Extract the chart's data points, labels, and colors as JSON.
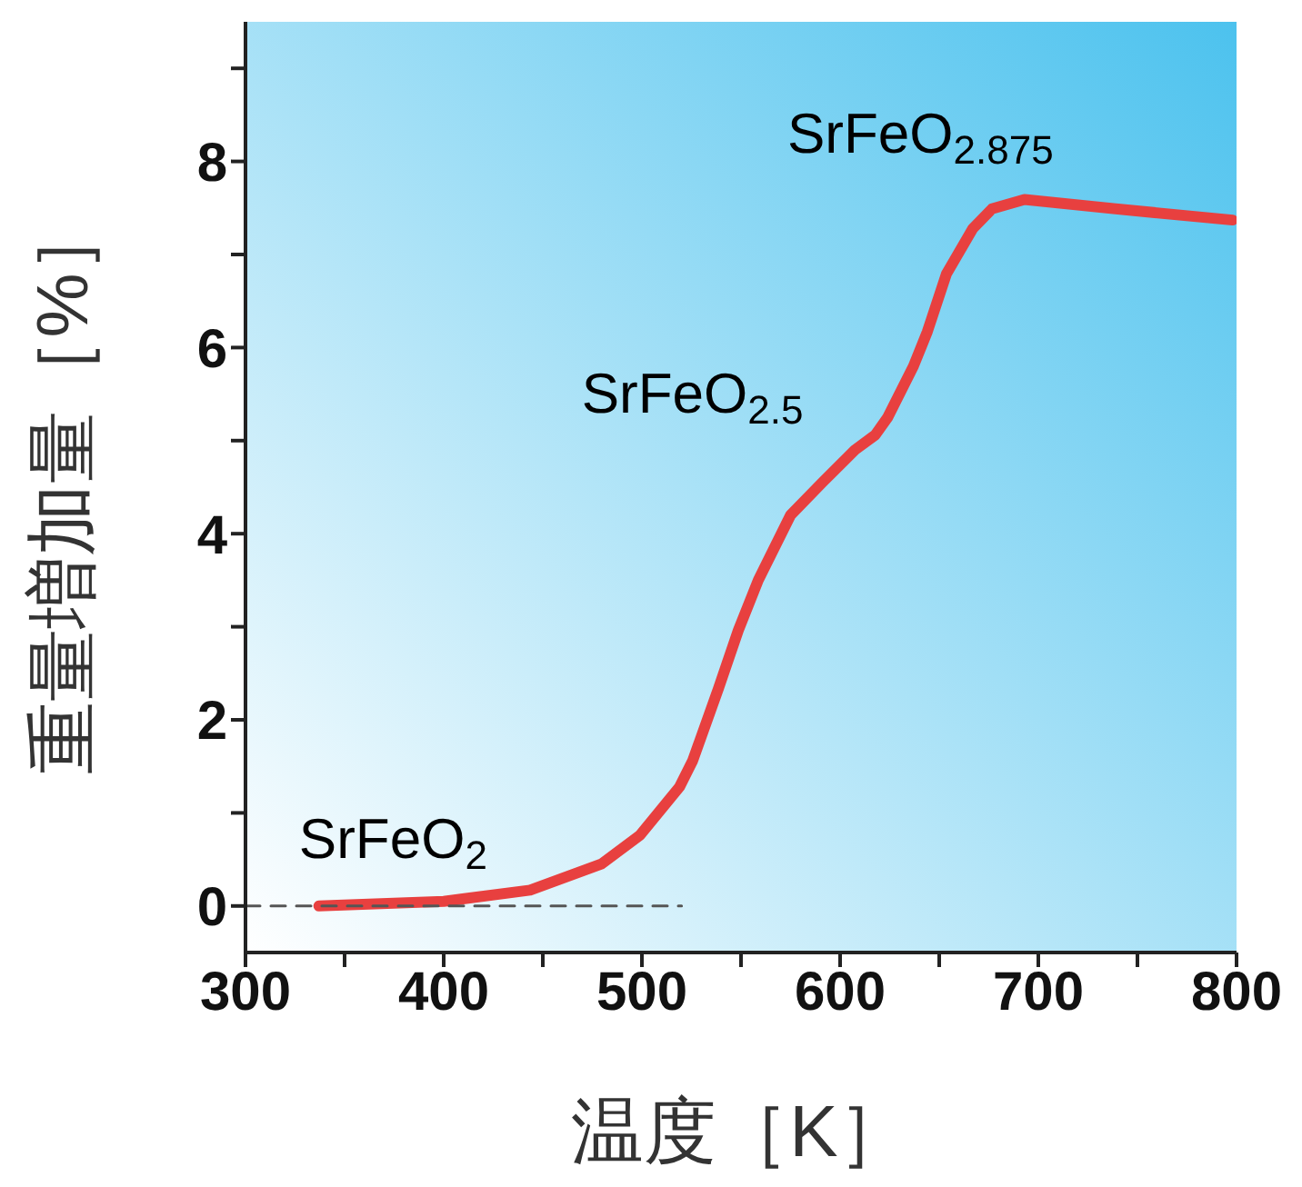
{
  "chart_data": {
    "type": "line",
    "xlabel": "温度［K］",
    "ylabel": "重量増加量［%］",
    "xlim": [
      300,
      800
    ],
    "xticks": [
      300,
      {
        "value": 350,
        "label": null
      },
      400,
      {
        "value": 450,
        "label": null
      },
      500,
      {
        "value": 550,
        "label": null
      },
      600,
      {
        "value": 650,
        "label": null
      },
      700,
      {
        "value": 750,
        "label": null
      },
      800
    ],
    "ylim": [
      -0.5,
      9.5
    ],
    "yticks": [
      0,
      {
        "value": 1,
        "label": null
      },
      2,
      {
        "value": 3,
        "label": null
      },
      4,
      {
        "value": 5,
        "label": null
      },
      6,
      {
        "value": 7,
        "label": null
      },
      8,
      {
        "value": 9,
        "label": null
      }
    ],
    "grid": false,
    "marker": "none",
    "series": [
      {
        "color": "#e8403f",
        "line_style": "solid",
        "x": [
          337,
          400,
          443.6,
          479.5,
          499,
          519,
          525.6,
          538.5,
          548.6,
          558.7,
          575,
          591,
          607.5,
          617.7,
          624,
          637,
          644,
          653.6,
          667,
          676.6,
          693,
          739,
          798
        ],
        "values": [
          0,
          0.05,
          0.17,
          0.45,
          0.76,
          1.28,
          1.56,
          2.33,
          2.96,
          3.5,
          4.2,
          4.55,
          4.9,
          5.06,
          5.25,
          5.8,
          6.17,
          6.79,
          7.28,
          7.49,
          7.59,
          7.49,
          7.37
        ]
      },
      {
        "color": "#555555",
        "line_style": "dashed",
        "x": [
          300,
          520
        ],
        "values": [
          0,
          0
        ]
      }
    ],
    "annotations": [
      "SrFeO$_{2}$",
      "SrFeO$_{2.5}$",
      "SrFeO$_{2.875}$"
    ]
  }
}
